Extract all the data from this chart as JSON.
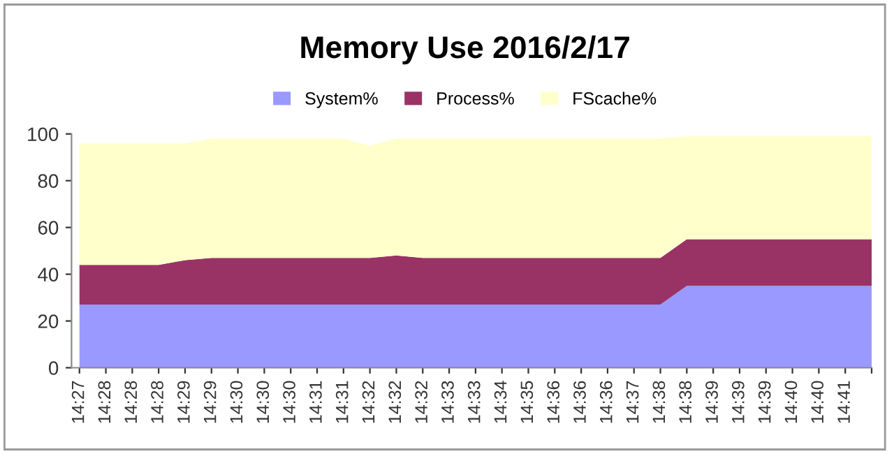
{
  "chart_data": {
    "type": "area",
    "stacked": true,
    "title": "Memory Use 2016/2/17",
    "categories": [
      "14:27",
      "14:28",
      "14:28",
      "14:28",
      "14:29",
      "14:29",
      "14:30",
      "14:30",
      "14:30",
      "14:31",
      "14:31",
      "14:32",
      "14:32",
      "14:32",
      "14:33",
      "14:33",
      "14:34",
      "14:35",
      "14:36",
      "14:36",
      "14:36",
      "14:37",
      "14:38",
      "14:38",
      "14:39",
      "14:39",
      "14:39",
      "14:40",
      "14:40",
      "14:41",
      null
    ],
    "series": [
      {
        "name": "System%",
        "color": "#9999ff",
        "values": [
          27,
          27,
          27,
          27,
          27,
          27,
          27,
          27,
          27,
          27,
          27,
          27,
          27,
          27,
          27,
          27,
          27,
          27,
          27,
          27,
          27,
          27,
          27,
          35,
          35,
          35,
          35,
          35,
          35,
          35,
          35
        ]
      },
      {
        "name": "Process%",
        "color": "#993366",
        "values": [
          17,
          17,
          17,
          17,
          19,
          20,
          20,
          20,
          20,
          20,
          20,
          20,
          21,
          20,
          20,
          20,
          20,
          20,
          20,
          20,
          20,
          20,
          20,
          20,
          20,
          20,
          20,
          20,
          20,
          20,
          20
        ]
      },
      {
        "name": "FScache%",
        "color": "#ffffcc",
        "values": [
          52,
          52,
          52,
          52,
          50,
          51,
          51,
          51,
          51,
          51,
          51,
          48,
          50,
          51,
          51,
          51,
          51,
          51,
          51,
          51,
          51,
          51,
          51,
          44,
          44,
          44,
          44,
          44,
          44,
          44,
          44
        ]
      }
    ],
    "ylim": [
      0,
      100
    ],
    "yticks": [
      0,
      20,
      40,
      60,
      80,
      100
    ],
    "grid": false,
    "legend": "top"
  }
}
